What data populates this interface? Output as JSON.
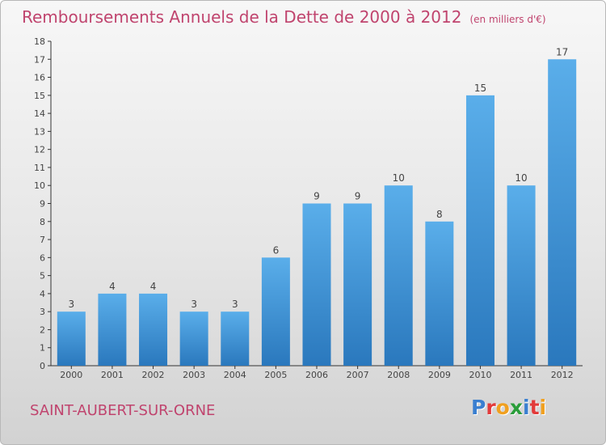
{
  "title": "Remboursements Annuels de la Dette de 2000 à 2012",
  "unit_note": "(en milliers d'€)",
  "commune": "SAINT-AUBERT-SUR-ORNE",
  "logo": {
    "letters": [
      "P",
      "r",
      "o",
      "x",
      "i",
      "t",
      "i"
    ],
    "colors": [
      "#3a7fd0",
      "#e23a3a",
      "#f0a020",
      "#2a9d3a",
      "#3a7fd0",
      "#e23a3a",
      "#f0a020"
    ]
  },
  "colors": {
    "bar": "#4aa0e2",
    "bar_dark": "#2a78bd",
    "title": "#c0446e"
  },
  "chart_data": {
    "type": "bar",
    "categories": [
      "2000",
      "2001",
      "2002",
      "2003",
      "2004",
      "2005",
      "2006",
      "2007",
      "2008",
      "2009",
      "2010",
      "2011",
      "2012"
    ],
    "values": [
      3,
      4,
      4,
      3,
      3,
      6,
      9,
      9,
      10,
      8,
      15,
      10,
      17
    ],
    "title": "Remboursements Annuels de la Dette de 2000 à 2012",
    "xlabel": "",
    "ylabel": "",
    "ylim": [
      0,
      18
    ],
    "yticks": [
      0,
      1,
      2,
      3,
      4,
      5,
      6,
      7,
      8,
      9,
      10,
      11,
      12,
      13,
      14,
      15,
      16,
      17,
      18
    ],
    "grid": false,
    "legend": "none"
  }
}
